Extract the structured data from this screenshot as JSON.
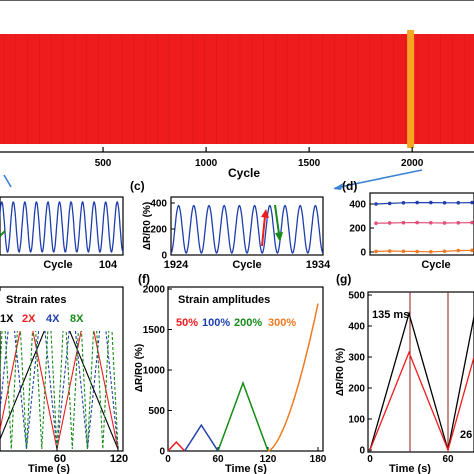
{
  "colors": {
    "red": "#ee1c1c",
    "blue": "#1f3fae",
    "green": "#168a16",
    "orange": "#f07a24",
    "black": "#000000",
    "highlight": "#f5a623",
    "pink": "#e0507a",
    "arrow": "#3b82d6"
  },
  "chart_data": [
    {
      "panel": "a",
      "type": "area",
      "xlabel": "Cycle",
      "ylabel": "",
      "xticks": [
        "500",
        "1000",
        "1500",
        "2000"
      ],
      "xlim": [
        0,
        2300
      ],
      "highlight_cycle": 1990,
      "description_color": "red band of dense resistance oscillations"
    },
    {
      "panel": "b",
      "type": "line",
      "label": "",
      "xlabel": "Cycle",
      "xticks": [
        "104"
      ],
      "peaks": 11,
      "ylim": [
        0,
        400
      ]
    },
    {
      "panel": "c",
      "type": "line",
      "label": "(c)",
      "xlabel": "Cycle",
      "ylabel": "ΔR/R0 (%)",
      "xticks": [
        "1924",
        "1934"
      ],
      "yticks": [
        "0",
        "200",
        "400"
      ],
      "ylim": [
        0,
        400
      ],
      "peak_value": 380,
      "peaks": 10
    },
    {
      "panel": "d",
      "type": "line",
      "label": "(d)",
      "xlabel": "Cycle",
      "yticks": [
        "0",
        "200",
        "400"
      ],
      "ylim": [
        0,
        450
      ],
      "series": [
        {
          "name": "",
          "color": "blue",
          "values": [
            400,
            405,
            410,
            412,
            412,
            410,
            410,
            412
          ]
        },
        {
          "name": "",
          "color": "pink",
          "values": [
            240,
            242,
            244,
            245,
            243,
            242,
            243,
            245
          ]
        },
        {
          "name": "",
          "color": "orange",
          "values": [
            5,
            8,
            6,
            4,
            2,
            6,
            12,
            14
          ]
        }
      ]
    },
    {
      "panel": "e",
      "type": "line",
      "label": "",
      "title": "Strain rates",
      "xlabel": "Time (s)",
      "xticks": [
        "60",
        "120"
      ],
      "xlim": [
        0,
        120
      ],
      "legend": [
        "1X",
        "2X",
        "4X",
        "8X"
      ]
    },
    {
      "panel": "f",
      "type": "line",
      "label": "(f)",
      "title": "Strain amplitudes",
      "xlabel": "Time (s)",
      "ylabel": "ΔR/R0 (%)",
      "xticks": [
        "0",
        "60",
        "120",
        "180"
      ],
      "yticks": [
        "0",
        "500",
        "1000",
        "1500",
        "2000"
      ],
      "xlim": [
        0,
        180
      ],
      "ylim": [
        0,
        2000
      ],
      "legend": [
        "50%",
        "100%",
        "200%",
        "300%"
      ],
      "series": [
        {
          "name": "50%",
          "color": "red",
          "x": [
            0,
            10,
            20
          ],
          "y": [
            0,
            110,
            0
          ]
        },
        {
          "name": "100%",
          "color": "blue",
          "x": [
            20,
            40,
            60
          ],
          "y": [
            0,
            320,
            0
          ]
        },
        {
          "name": "200%",
          "color": "green",
          "x": [
            60,
            90,
            120
          ],
          "y": [
            0,
            840,
            0
          ]
        },
        {
          "name": "300%",
          "color": "orange",
          "x": [
            120,
            180
          ],
          "y": [
            0,
            1820
          ]
        }
      ]
    },
    {
      "panel": "g",
      "type": "line",
      "label": "(g)",
      "xlabel": "Time (s)",
      "ylabel": "ΔR/R0 (%)",
      "xticks": [
        "0",
        "60"
      ],
      "yticks": [
        "0",
        "100",
        "200",
        "300",
        "400",
        "500"
      ],
      "xlim": [
        0,
        80
      ],
      "ylim": [
        0,
        500
      ],
      "annotations": [
        "135 ms",
        "26"
      ],
      "series": [
        {
          "name": "",
          "color": "black",
          "x": [
            0,
            30,
            60,
            80
          ],
          "y": [
            0,
            440,
            0,
            430
          ]
        },
        {
          "name": "",
          "color": "red",
          "x": [
            0,
            30,
            60,
            80
          ],
          "y": [
            0,
            315,
            0,
            300
          ]
        }
      ]
    }
  ]
}
